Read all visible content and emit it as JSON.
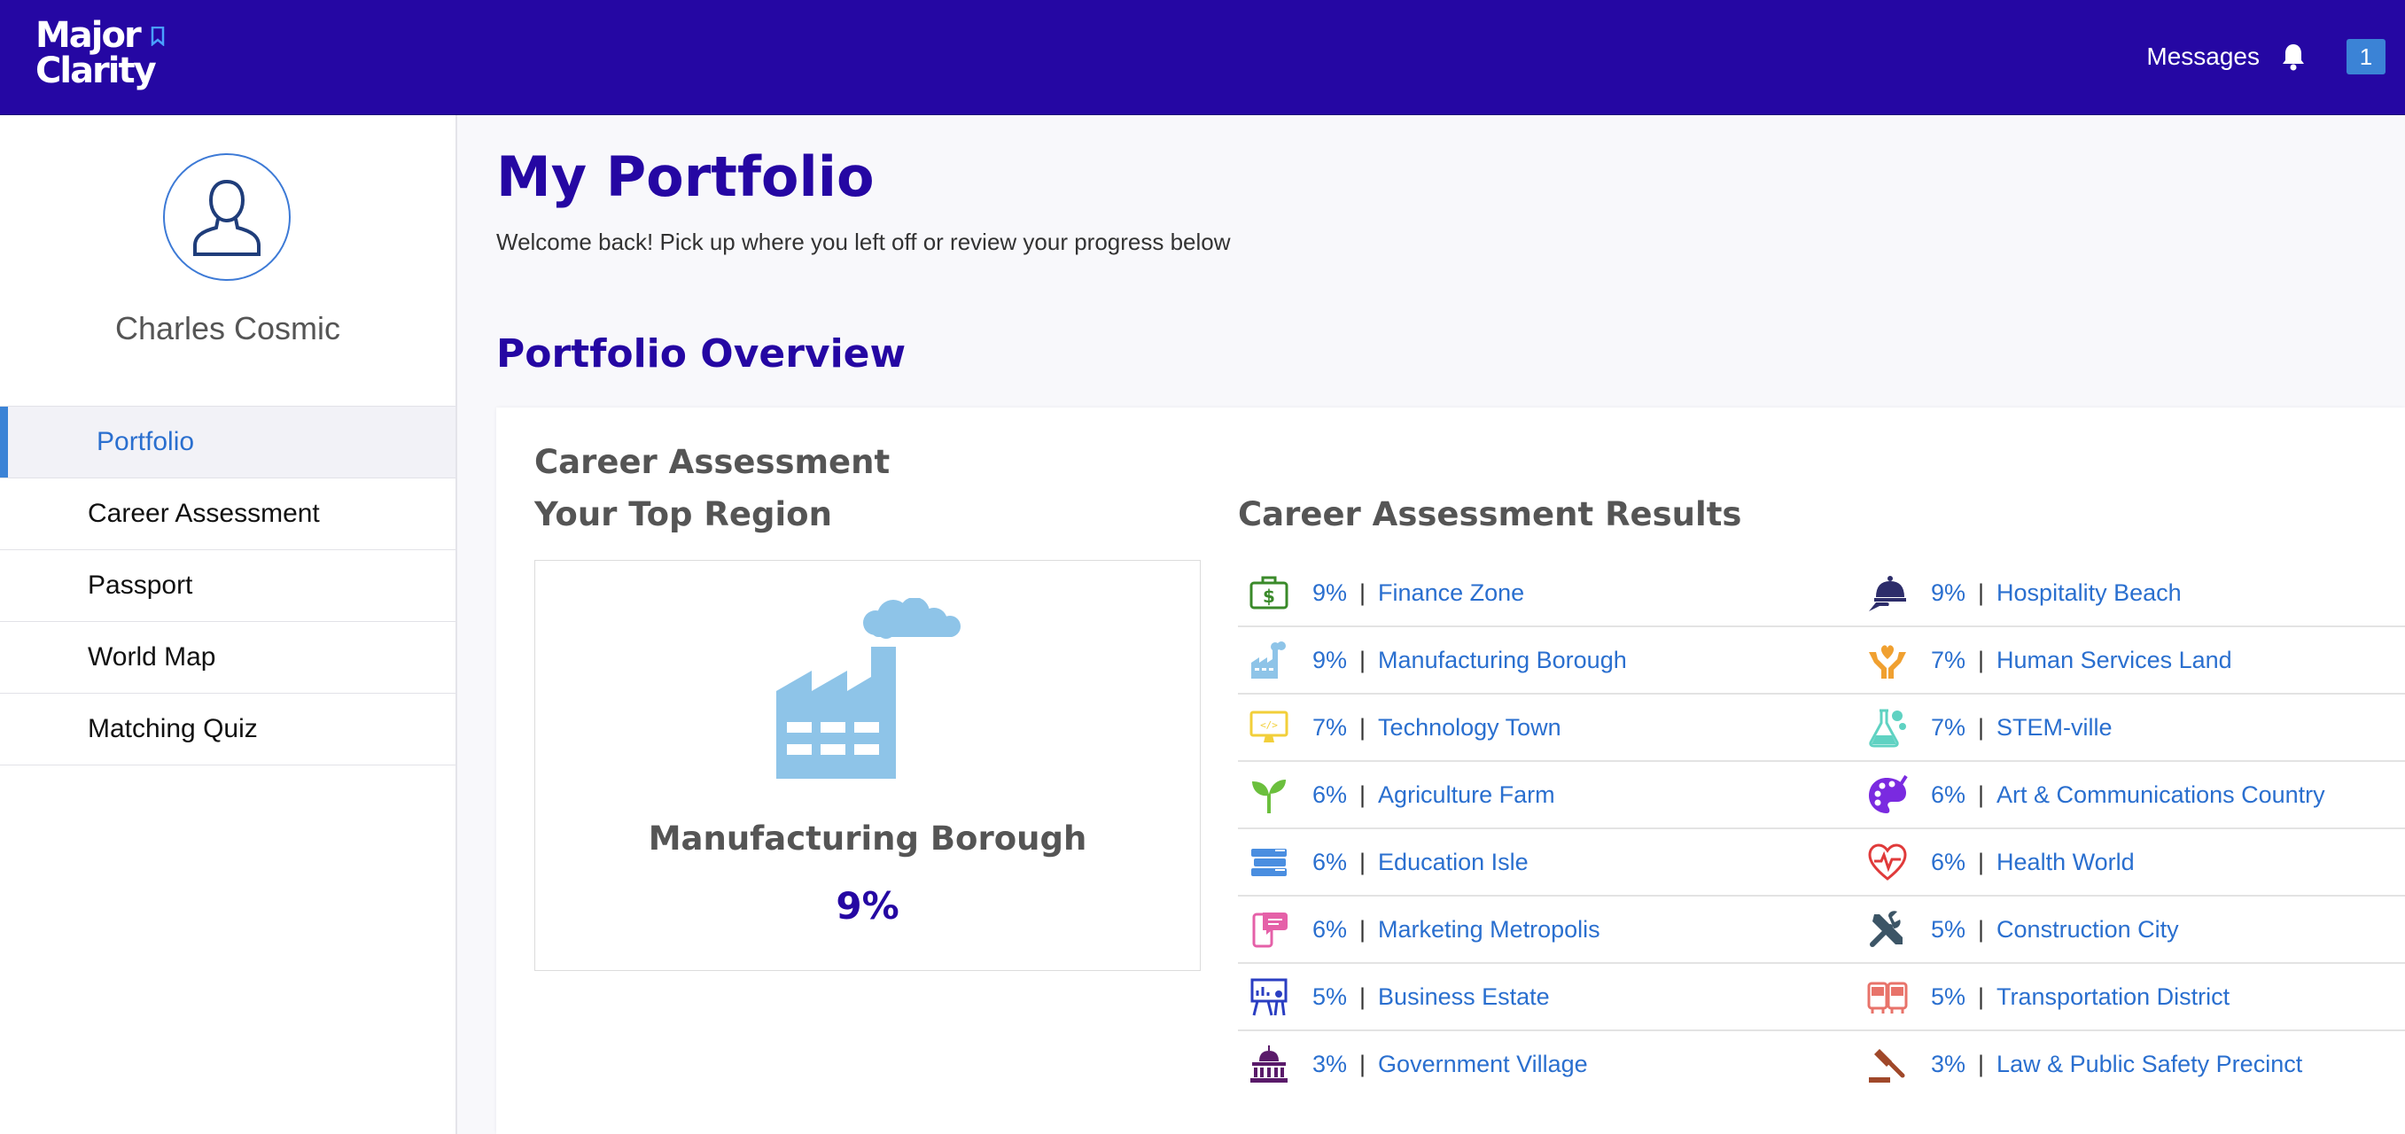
{
  "header": {
    "logo_line1": "Major",
    "logo_line2": "Clarity",
    "messages_label": "Messages",
    "notification_count": "1"
  },
  "sidebar": {
    "user_name": "Charles Cosmic",
    "items": [
      {
        "label": "Portfolio",
        "active": true
      },
      {
        "label": "Career Assessment"
      },
      {
        "label": "Passport"
      },
      {
        "label": "World Map"
      },
      {
        "label": "Matching Quiz"
      }
    ]
  },
  "main": {
    "title": "My Portfolio",
    "subtitle": "Welcome back! Pick up where you left off or review your progress below",
    "section_title": "Portfolio Overview",
    "card": {
      "heading": "Career Assessment",
      "top_region_heading": "Your Top Region",
      "top_region_name": "Manufacturing Borough",
      "top_region_pct": "9%",
      "results_heading": "Career Assessment Results"
    },
    "results_left": [
      {
        "pct": "9%",
        "name": "Finance Zone",
        "icon": "finance-icon",
        "color": "#3a8a2a"
      },
      {
        "pct": "9%",
        "name": "Manufacturing Borough",
        "icon": "factory-icon",
        "color": "#8ec4e8"
      },
      {
        "pct": "7%",
        "name": "Technology Town",
        "icon": "monitor-icon",
        "color": "#f2cf3a"
      },
      {
        "pct": "6%",
        "name": "Agriculture Farm",
        "icon": "sprout-icon",
        "color": "#6bbf3d"
      },
      {
        "pct": "6%",
        "name": "Education Isle",
        "icon": "books-icon",
        "color": "#4a8ee0"
      },
      {
        "pct": "6%",
        "name": "Marketing Metropolis",
        "icon": "phone-chat-icon",
        "color": "#e560a8"
      },
      {
        "pct": "5%",
        "name": "Business Estate",
        "icon": "presentation-icon",
        "color": "#2a3ec2"
      },
      {
        "pct": "3%",
        "name": "Government Village",
        "icon": "capitol-icon",
        "color": "#5a1a6a"
      }
    ],
    "results_right": [
      {
        "pct": "9%",
        "name": "Hospitality Beach",
        "icon": "cloche-icon",
        "color": "#2d2d6a"
      },
      {
        "pct": "7%",
        "name": "Human Services Land",
        "icon": "hands-heart-icon",
        "color": "#f0a030"
      },
      {
        "pct": "7%",
        "name": "STEM-ville",
        "icon": "flask-icon",
        "color": "#5fd2c2"
      },
      {
        "pct": "6%",
        "name": "Art & Communications Country",
        "icon": "palette-icon",
        "color": "#7a2ae0"
      },
      {
        "pct": "6%",
        "name": "Health World",
        "icon": "heartbeat-icon",
        "color": "#e03a3a"
      },
      {
        "pct": "5%",
        "name": "Construction City",
        "icon": "tools-icon",
        "color": "#3c5566"
      },
      {
        "pct": "5%",
        "name": "Transportation District",
        "icon": "bus-icon",
        "color": "#e8736a"
      },
      {
        "pct": "3%",
        "name": "Law & Public Safety Precinct",
        "icon": "gavel-icon",
        "color": "#a0482a"
      }
    ]
  }
}
